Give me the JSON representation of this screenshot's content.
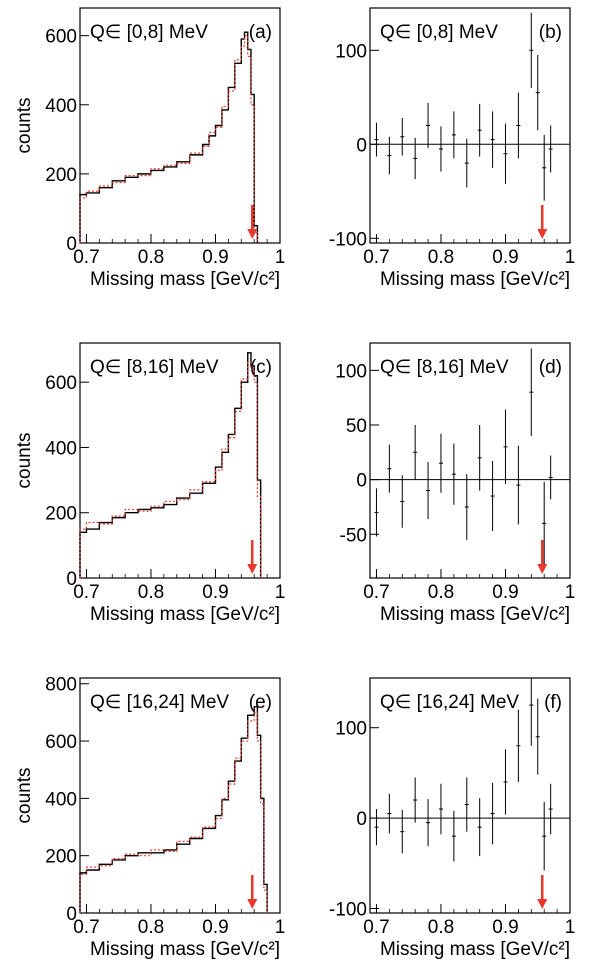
{
  "figure": {
    "arrow_color": "#e8392c",
    "mc_color": "#e8392c",
    "data_color": "#000000"
  },
  "chart_data": [
    {
      "id": "a",
      "type": "line",
      "panel_label": "(a)",
      "annotation": "Q∈ [0,8] MeV",
      "xlabel": "Missing mass [GeV/c²]",
      "ylabel": "counts",
      "xlim": [
        0.69,
        1.0
      ],
      "ylim": [
        0,
        680
      ],
      "xticks": [
        "0.7",
        "0.8",
        "0.9",
        "1"
      ],
      "yticks": [
        0,
        200,
        400,
        600
      ],
      "arrow_x": 0.957,
      "series": [
        {
          "style": "step-black",
          "x": [
            0.69,
            0.7,
            0.72,
            0.74,
            0.76,
            0.78,
            0.8,
            0.82,
            0.84,
            0.86,
            0.88,
            0.89,
            0.9,
            0.91,
            0.92,
            0.93,
            0.94,
            0.945,
            0.95,
            0.955,
            0.96,
            0.965
          ],
          "y": [
            140,
            145,
            160,
            180,
            190,
            200,
            210,
            220,
            235,
            255,
            285,
            310,
            340,
            385,
            450,
            520,
            590,
            610,
            560,
            430,
            50,
            0
          ]
        },
        {
          "style": "step-red-dotted",
          "x": [
            0.69,
            0.7,
            0.72,
            0.74,
            0.76,
            0.78,
            0.8,
            0.82,
            0.84,
            0.86,
            0.88,
            0.89,
            0.9,
            0.91,
            0.92,
            0.93,
            0.94,
            0.945,
            0.95,
            0.955,
            0.96,
            0.965
          ],
          "y": [
            130,
            150,
            165,
            175,
            195,
            195,
            215,
            225,
            230,
            260,
            280,
            320,
            335,
            395,
            440,
            530,
            570,
            600,
            540,
            400,
            30,
            0
          ]
        }
      ]
    },
    {
      "id": "b",
      "type": "scatter",
      "panel_label": "(b)",
      "annotation": "Q∈ [0,8] MeV",
      "xlabel": "Missing mass [GeV/c²]",
      "ylabel": "",
      "xlim": [
        0.69,
        1.0
      ],
      "ylim": [
        -105,
        145
      ],
      "xticks": [
        "0.7",
        "0.8",
        "0.9",
        "1"
      ],
      "yticks": [
        -100,
        0,
        100
      ],
      "zero_line": true,
      "arrow_x": 0.957,
      "points": {
        "x": [
          0.7,
          0.72,
          0.74,
          0.76,
          0.78,
          0.8,
          0.82,
          0.84,
          0.86,
          0.88,
          0.9,
          0.92,
          0.94,
          0.95,
          0.96,
          0.97
        ],
        "y": [
          5,
          -12,
          8,
          -15,
          20,
          -5,
          10,
          -20,
          15,
          5,
          -10,
          20,
          100,
          55,
          -25,
          -5
        ],
        "err": [
          18,
          20,
          20,
          22,
          24,
          24,
          25,
          26,
          28,
          30,
          32,
          35,
          40,
          40,
          35,
          25
        ]
      }
    },
    {
      "id": "c",
      "type": "line",
      "panel_label": "(c)",
      "annotation": "Q∈ [8,16] MeV",
      "xlabel": "Missing mass [GeV/c²]",
      "ylabel": "counts",
      "xlim": [
        0.69,
        1.0
      ],
      "ylim": [
        0,
        720
      ],
      "xticks": [
        "0.7",
        "0.8",
        "0.9",
        "1"
      ],
      "yticks": [
        0,
        200,
        400,
        600
      ],
      "arrow_x": 0.957,
      "series": [
        {
          "style": "step-black",
          "x": [
            0.69,
            0.7,
            0.72,
            0.74,
            0.76,
            0.78,
            0.8,
            0.82,
            0.84,
            0.86,
            0.88,
            0.9,
            0.91,
            0.92,
            0.93,
            0.94,
            0.95,
            0.955,
            0.96,
            0.965,
            0.97
          ],
          "y": [
            140,
            150,
            170,
            185,
            200,
            210,
            215,
            225,
            245,
            260,
            290,
            340,
            385,
            440,
            520,
            600,
            690,
            650,
            620,
            300,
            0
          ]
        },
        {
          "style": "step-red-dotted",
          "x": [
            0.69,
            0.7,
            0.72,
            0.74,
            0.76,
            0.78,
            0.8,
            0.82,
            0.84,
            0.86,
            0.88,
            0.9,
            0.91,
            0.92,
            0.93,
            0.94,
            0.95,
            0.955,
            0.96,
            0.965,
            0.97
          ],
          "y": [
            150,
            170,
            165,
            190,
            210,
            205,
            220,
            235,
            240,
            270,
            295,
            330,
            395,
            430,
            510,
            610,
            660,
            640,
            600,
            250,
            0
          ]
        }
      ]
    },
    {
      "id": "d",
      "type": "scatter",
      "panel_label": "(d)",
      "annotation": "Q∈ [8,16] MeV",
      "xlabel": "Missing mass [GeV/c²]",
      "ylabel": "",
      "xlim": [
        0.69,
        1.0
      ],
      "ylim": [
        -90,
        125
      ],
      "xticks": [
        "0.7",
        "0.8",
        "0.9",
        "1"
      ],
      "yticks": [
        -50,
        0,
        50,
        100
      ],
      "zero_line": true,
      "arrow_x": 0.957,
      "points": {
        "x": [
          0.7,
          0.72,
          0.74,
          0.76,
          0.78,
          0.8,
          0.82,
          0.84,
          0.86,
          0.88,
          0.9,
          0.92,
          0.94,
          0.96,
          0.97
        ],
        "y": [
          -30,
          10,
          -20,
          25,
          -10,
          15,
          5,
          -25,
          20,
          -15,
          30,
          -5,
          80,
          -40,
          2
        ],
        "err": [
          22,
          22,
          24,
          25,
          26,
          27,
          28,
          30,
          30,
          32,
          34,
          36,
          40,
          38,
          20
        ]
      }
    },
    {
      "id": "e",
      "type": "line",
      "panel_label": "(e)",
      "annotation": "Q∈ [16,24] MeV",
      "xlabel": "Missing mass [GeV/c²]",
      "ylabel": "counts",
      "xlim": [
        0.69,
        1.0
      ],
      "ylim": [
        0,
        820
      ],
      "xticks": [
        "0.7",
        "0.8",
        "0.9",
        "1"
      ],
      "yticks": [
        0,
        200,
        400,
        600,
        800
      ],
      "arrow_x": 0.957,
      "series": [
        {
          "style": "step-black",
          "x": [
            0.69,
            0.7,
            0.72,
            0.74,
            0.76,
            0.78,
            0.8,
            0.82,
            0.84,
            0.86,
            0.88,
            0.9,
            0.91,
            0.92,
            0.93,
            0.94,
            0.95,
            0.96,
            0.965,
            0.97,
            0.975,
            0.98
          ],
          "y": [
            140,
            150,
            170,
            185,
            200,
            210,
            210,
            220,
            240,
            260,
            295,
            340,
            395,
            460,
            530,
            610,
            690,
            720,
            620,
            400,
            100,
            0
          ]
        },
        {
          "style": "step-red-dotted",
          "x": [
            0.69,
            0.7,
            0.72,
            0.74,
            0.76,
            0.78,
            0.8,
            0.82,
            0.84,
            0.86,
            0.88,
            0.9,
            0.91,
            0.92,
            0.93,
            0.94,
            0.95,
            0.96,
            0.965,
            0.97,
            0.975,
            0.98
          ],
          "y": [
            135,
            160,
            165,
            190,
            205,
            200,
            220,
            215,
            250,
            265,
            300,
            330,
            400,
            450,
            540,
            600,
            670,
            700,
            600,
            380,
            80,
            0
          ]
        }
      ]
    },
    {
      "id": "f",
      "type": "scatter",
      "panel_label": "(f)",
      "annotation": "Q∈ [16,24] MeV",
      "xlabel": "Missing mass [GeV/c²]",
      "ylabel": "",
      "xlim": [
        0.69,
        1.0
      ],
      "ylim": [
        -105,
        155
      ],
      "xticks": [
        "0.7",
        "0.8",
        "0.9",
        "1"
      ],
      "yticks": [
        -100,
        0,
        100
      ],
      "zero_line": true,
      "arrow_x": 0.957,
      "points": {
        "x": [
          0.7,
          0.72,
          0.74,
          0.76,
          0.78,
          0.8,
          0.82,
          0.84,
          0.86,
          0.88,
          0.9,
          0.92,
          0.94,
          0.95,
          0.96,
          0.97
        ],
        "y": [
          -10,
          5,
          -15,
          20,
          -5,
          10,
          -20,
          15,
          -10,
          5,
          40,
          80,
          125,
          90,
          -20,
          10
        ],
        "err": [
          20,
          22,
          24,
          25,
          26,
          28,
          28,
          30,
          32,
          34,
          36,
          40,
          45,
          42,
          38,
          28
        ]
      }
    }
  ]
}
